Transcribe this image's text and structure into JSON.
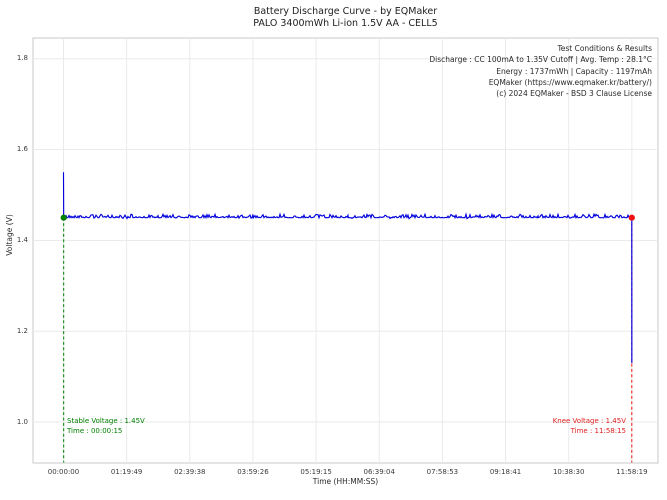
{
  "header": {
    "title": "Battery Discharge Curve - by EQMaker",
    "subtitle": "PALO 3400mWh Li-ion 1.5V AA - CELL5"
  },
  "info_box": {
    "lines": [
      "Test Conditions & Results",
      "Discharge : CC 100mA to 1.35V Cutoff | Avg. Temp : 28.1°C",
      "Energy : 1737mWh | Capacity : 1197mAh",
      "EQMaker (https://www.eqmaker.kr/battery/)",
      "(c) 2024 EQMaker - BSD 3 Clause License"
    ]
  },
  "annotations": {
    "stable": {
      "line1": "Stable Voltage : 1.45V",
      "line2": "Time : 00:00:15",
      "color": "#008000"
    },
    "knee": {
      "line1": "Knee Voltage : 1.45V",
      "line2": "Time : 11:58:15",
      "color": "#e02020"
    }
  },
  "axes": {
    "x_label": "Time (HH:MM:SS)",
    "y_label": "Voltage (V)"
  },
  "chart_data": {
    "type": "line",
    "title": "Battery Discharge Curve - by EQMaker",
    "subtitle": "PALO 3400mWh Li-ion 1.5V AA - CELL5",
    "xlabel": "Time (HH:MM:SS)",
    "ylabel": "Voltage (V)",
    "x_tick_labels": [
      "00:00:00",
      "01:19:49",
      "02:39:38",
      "03:59:26",
      "05:19:15",
      "06:39:04",
      "07:58:53",
      "09:18:41",
      "10:38:30",
      "11:58:19"
    ],
    "y_ticks": [
      1.0,
      1.2,
      1.4,
      1.6,
      1.8
    ],
    "ylim": [
      0.91,
      1.85
    ],
    "grid": true,
    "legend": "none",
    "line_color": "#0000dd",
    "grid_color": "#e8e8e8",
    "frame_color": "#c9c9c9",
    "series": [
      {
        "name": "cell-voltage",
        "noise_V": 0.007,
        "points_time_voltage": [
          [
            "00:00:00",
            1.55
          ],
          [
            "00:00:15",
            1.45
          ],
          [
            "02:00:00",
            1.45
          ],
          [
            "04:00:00",
            1.45
          ],
          [
            "06:00:00",
            1.45
          ],
          [
            "08:00:00",
            1.45
          ],
          [
            "10:00:00",
            1.45
          ],
          [
            "11:58:15",
            1.45
          ],
          [
            "11:58:19",
            1.13
          ]
        ]
      }
    ],
    "markers": [
      {
        "name": "stable-point",
        "label": "Stable Voltage",
        "time": "00:00:15",
        "voltage": 1.45,
        "color": "#008000"
      },
      {
        "name": "knee-point",
        "label": "Knee Voltage",
        "time": "11:58:15",
        "voltage": 1.45,
        "color": "#ee1111"
      }
    ],
    "stats": {
      "discharge": "CC 100mA to 1.35V Cutoff",
      "avg_temp_c": 28.1,
      "energy_mwh": 1737,
      "capacity_mah": 1197
    }
  }
}
